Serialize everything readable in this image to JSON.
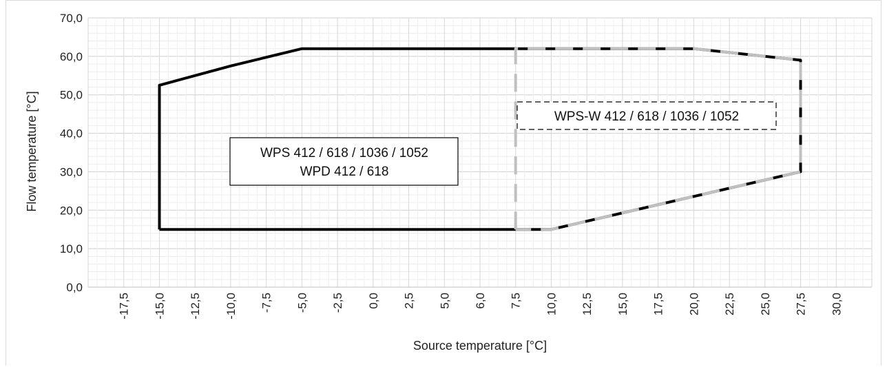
{
  "chart_data": {
    "type": "area",
    "xlabel": "Source temperature [°C]",
    "ylabel": "Flow temperature [°C]",
    "xlim": [
      -20,
      32.5
    ],
    "ylim": [
      0,
      70
    ],
    "x_ticks": [
      "-17,5",
      "-15,0",
      "-12,5",
      "-10,0",
      "-7,5",
      "-5,0",
      "-2,5",
      "0,0",
      "2,5",
      "5,0",
      "6,0",
      "7,5",
      "10,0",
      "12,5",
      "15,0",
      "17,5",
      "20,0",
      "22,5",
      "25,0",
      "27,5",
      "30,0"
    ],
    "y_ticks": [
      "0,0",
      "10,0",
      "20,0",
      "30,0",
      "40,0",
      "50,0",
      "60,0",
      "70,0"
    ],
    "y_tick_values": [
      0,
      10,
      20,
      30,
      40,
      50,
      60,
      70
    ],
    "grid": true,
    "series": [
      {
        "name": "WPS 412 / 618 / 1036  / 1052\nWPD 412 / 618",
        "line_style": "solid",
        "color": "#000000",
        "points": [
          [
            -15,
            15
          ],
          [
            -15,
            52.5
          ],
          [
            -10,
            57.5
          ],
          [
            -5,
            62
          ],
          [
            7.5,
            62
          ],
          [
            20,
            62
          ],
          [
            27.5,
            59
          ],
          [
            27.5,
            30
          ],
          [
            10,
            15
          ],
          [
            -15,
            15
          ]
        ]
      },
      {
        "name": "WPS-W 412 / 618 / 1036 / 1052",
        "line_style": "dashed",
        "color": "#c0c0c0",
        "points": [
          [
            7.5,
            15
          ],
          [
            7.5,
            62
          ],
          [
            20,
            62
          ],
          [
            27.5,
            59
          ],
          [
            27.5,
            30
          ],
          [
            10,
            15
          ],
          [
            7.5,
            15
          ]
        ]
      }
    ],
    "annotations": [
      {
        "lines": [
          "WPS 412 / 618 / 1036  / 1052",
          "WPD 412 / 618"
        ],
        "box_style": "solid"
      },
      {
        "lines": [
          "WPS-W 412 / 618 / 1036 / 1052"
        ],
        "box_style": "dashed"
      }
    ]
  }
}
